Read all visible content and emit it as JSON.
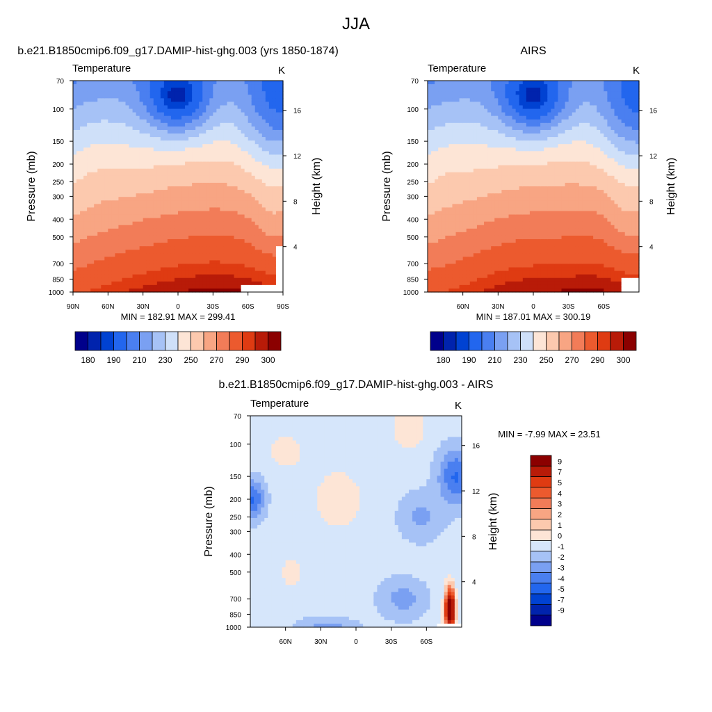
{
  "figure": {
    "title": "JJA"
  },
  "colors": {
    "full": [
      "#00008b",
      "#0023ad",
      "#0042d2",
      "#2266ee",
      "#4a7ff0",
      "#7aa0f2",
      "#a6c2f6",
      "#cfe0f9",
      "#fde5d6",
      "#fcc9ae",
      "#f8a583",
      "#f27c58",
      "#ec5a2e",
      "#df3b12",
      "#b81b08",
      "#8b0000"
    ],
    "diff": [
      "#00008b",
      "#0023ad",
      "#0042d2",
      "#2266ee",
      "#4a7ff0",
      "#7aa0f2",
      "#a6c2f6",
      "#d6e6fb",
      "#fde5d6",
      "#fcc9ae",
      "#f8a583",
      "#f27c58",
      "#ec5a2e",
      "#df3b12",
      "#b81b08",
      "#8b0000"
    ]
  },
  "chart_data": [
    {
      "type": "heatmap",
      "id": "model",
      "title": "b.e21.B1850cmip6.f09_g17.DAMIP-hist-ghg.003 (yrs 1850-1874)",
      "left_title": "Temperature",
      "units": "K",
      "ylabel": "Pressure (mb)",
      "ylabel_right": "Height (km)",
      "xlim": [
        90,
        -90
      ],
      "x_ticks": [
        "90N",
        "60N",
        "30N",
        "0",
        "30S",
        "60S",
        "90S"
      ],
      "x_tick_values": [
        90,
        60,
        30,
        0,
        -30,
        -60,
        -90
      ],
      "ylim": [
        1000,
        70
      ],
      "y_scale": "log",
      "y_ticks": [
        70,
        100,
        150,
        200,
        250,
        300,
        400,
        500,
        700,
        850,
        1000
      ],
      "height_ticks": [
        16,
        12,
        8,
        4
      ],
      "stats": "MIN = 182.91  MAX = 299.41",
      "levels": [
        180,
        185,
        190,
        200,
        210,
        220,
        230,
        240,
        250,
        260,
        270,
        280,
        290,
        295,
        300
      ],
      "colorbar_labels": [
        "180",
        "190",
        "210",
        "230",
        "250",
        "270",
        "290",
        "300"
      ]
    },
    {
      "type": "heatmap",
      "id": "obs",
      "title": "AIRS",
      "left_title": "Temperature",
      "units": "K",
      "ylabel": "Pressure (mb)",
      "ylabel_right": "Height (km)",
      "xlim": [
        90,
        -90
      ],
      "x_ticks": [
        "60N",
        "30N",
        "0",
        "30S",
        "60S"
      ],
      "x_tick_values": [
        60,
        30,
        0,
        -30,
        -60
      ],
      "ylim": [
        1000,
        70
      ],
      "y_scale": "log",
      "y_ticks": [
        70,
        100,
        150,
        200,
        250,
        300,
        400,
        500,
        700,
        850,
        1000
      ],
      "height_ticks": [
        16,
        12,
        8,
        4
      ],
      "stats": "MIN = 187.01  MAX = 300.19",
      "levels": [
        180,
        185,
        190,
        200,
        210,
        220,
        230,
        240,
        250,
        260,
        270,
        280,
        290,
        295,
        300
      ],
      "colorbar_labels": [
        "180",
        "190",
        "210",
        "230",
        "250",
        "270",
        "290",
        "300"
      ]
    },
    {
      "type": "heatmap",
      "id": "diff",
      "title": "b.e21.B1850cmip6.f09_g17.DAMIP-hist-ghg.003 - AIRS",
      "left_title": "Temperature",
      "units": "K",
      "ylabel": "Pressure (mb)",
      "ylabel_right": "Height (km)",
      "xlim": [
        90,
        -90
      ],
      "x_ticks": [
        "60N",
        "30N",
        "0",
        "30S",
        "60S"
      ],
      "x_tick_values": [
        60,
        30,
        0,
        -30,
        -60
      ],
      "ylim": [
        1000,
        70
      ],
      "y_scale": "log",
      "y_ticks": [
        70,
        100,
        150,
        200,
        250,
        300,
        400,
        500,
        700,
        850,
        1000
      ],
      "height_ticks": [
        16,
        12,
        8,
        4
      ],
      "stats": "MIN =  -7.99  MAX =  23.51",
      "levels": [
        -9,
        -7,
        -5,
        -4,
        -3,
        -2,
        -1,
        0,
        1,
        2,
        3,
        4,
        5,
        7,
        9
      ],
      "colorbar_labels": [
        "9",
        "7",
        "5",
        "4",
        "3",
        "2",
        "1",
        "0",
        "-1",
        "-2",
        "-3",
        "-4",
        "-5",
        "-7",
        "-9"
      ]
    }
  ]
}
